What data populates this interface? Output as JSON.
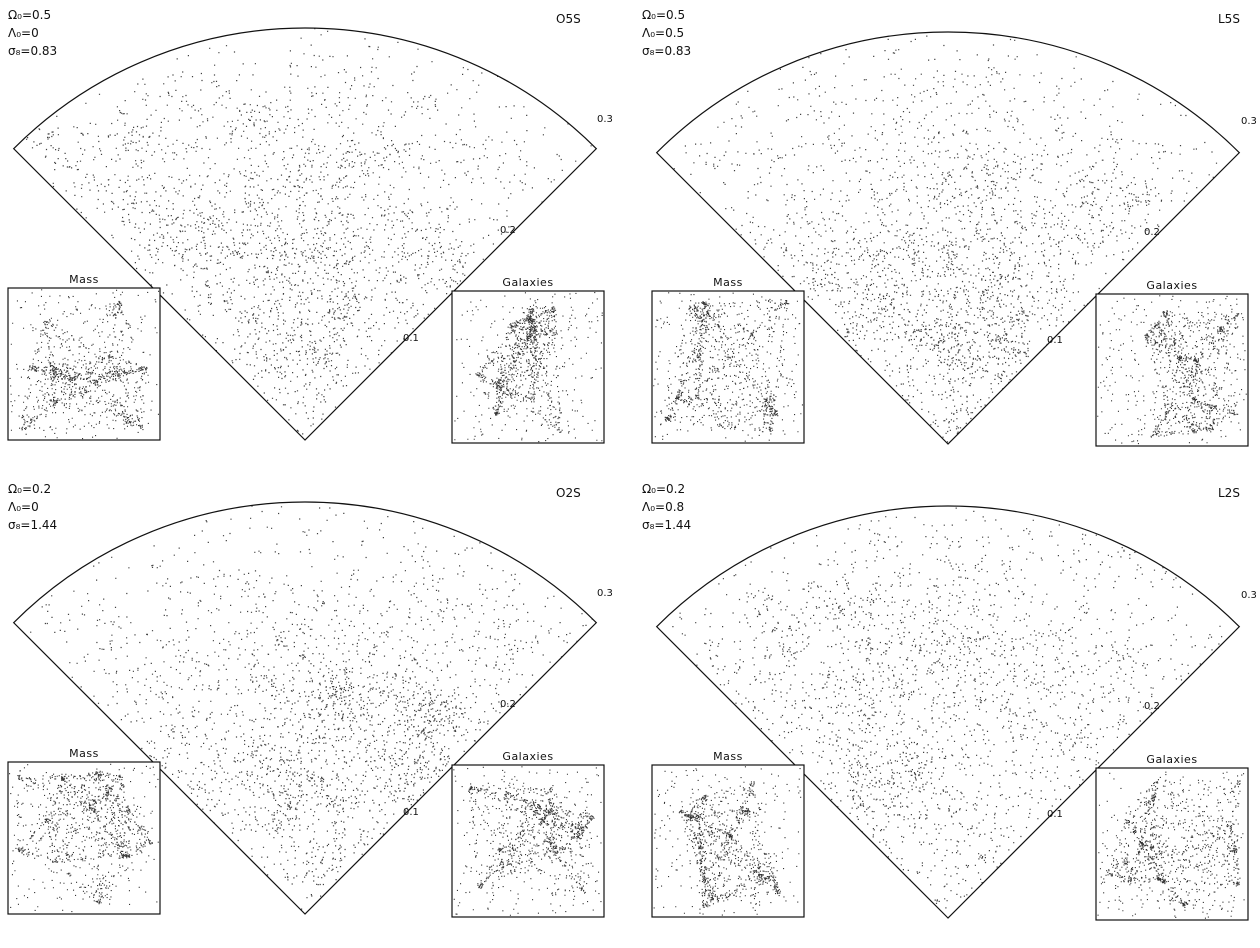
{
  "panels": [
    {
      "id": "tl",
      "params": [
        "Ω₀=0.5",
        "Λ₀=0",
        "σ₈=0.83"
      ],
      "code": "O5S",
      "rings": [
        "0.3",
        "0.2",
        "0.1"
      ],
      "insets": [
        "Mass",
        "Galaxies"
      ]
    },
    {
      "id": "tr",
      "params": [
        "Ω₀=0.5",
        "Λ₀=0.5",
        "σ₈=0.83"
      ],
      "code": "L5S",
      "rings": [
        "0.3",
        "0.2",
        "0.1"
      ],
      "insets": [
        "Mass",
        "Galaxies"
      ]
    },
    {
      "id": "bl",
      "params": [
        "Ω₀=0.2",
        "Λ₀=0",
        "σ₈=1.44"
      ],
      "code": "O2S",
      "rings": [
        "0.3",
        "0.2",
        "0.1"
      ],
      "insets": [
        "Mass",
        "Galaxies"
      ]
    },
    {
      "id": "br",
      "params": [
        "Ω₀=0.2",
        "Λ₀=0.8",
        "σ₈=1.44"
      ],
      "code": "L2S",
      "rings": [
        "0.3",
        "0.2",
        "0.1"
      ],
      "insets": [
        "Mass",
        "Galaxies"
      ]
    }
  ],
  "colors": {
    "ink": "#111111",
    "paper": "#ffffff"
  }
}
